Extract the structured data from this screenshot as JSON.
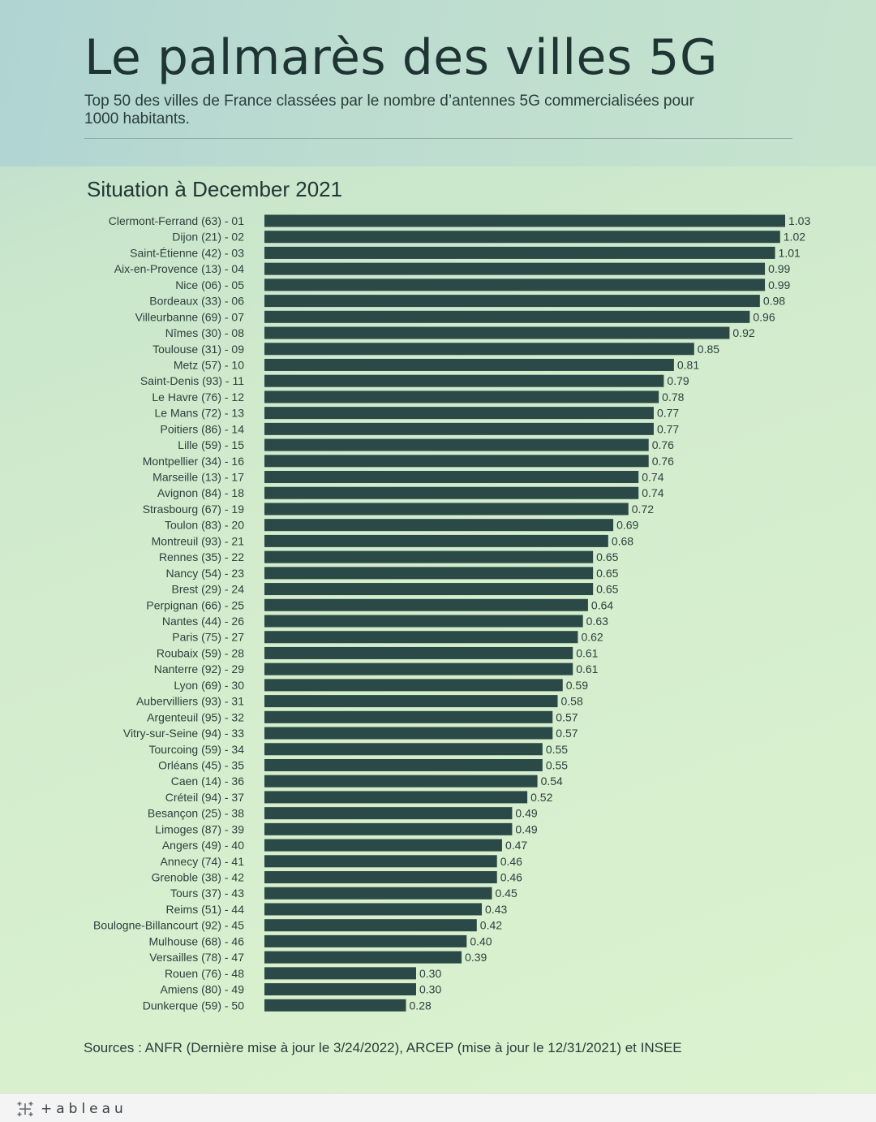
{
  "header": {
    "title": "Le palmarès des villes 5G",
    "subtitle": "Top 50 des villes de France classées par le nombre d’antennes 5G commercialisées pour 1000 habitants."
  },
  "chart_heading": "Situation à December 2021",
  "chart_data": {
    "type": "bar",
    "orientation": "horizontal",
    "categories": [
      "Clermont-Ferrand (63)  - 01",
      "Dijon (21)  - 02",
      "Saint-Étienne (42)  - 03",
      "Aix-en-Provence (13)  - 04",
      "Nice (06)  - 05",
      "Bordeaux (33)  - 06",
      "Villeurbanne (69)  - 07",
      "Nîmes (30)  - 08",
      "Toulouse (31)  - 09",
      "Metz (57)  - 10",
      "Saint-Denis (93)  - 11",
      "Le Havre (76)  - 12",
      "Le Mans (72)  - 13",
      "Poitiers (86)  - 14",
      "Lille (59)  - 15",
      "Montpellier (34)  - 16",
      "Marseille (13)  - 17",
      "Avignon (84)  - 18",
      "Strasbourg (67)  - 19",
      "Toulon (83)  - 20",
      "Montreuil (93)  - 21",
      "Rennes (35)  - 22",
      "Nancy (54)  - 23",
      "Brest (29)  - 24",
      "Perpignan (66)  - 25",
      "Nantes (44)  - 26",
      "Paris (75)  - 27",
      "Roubaix (59)  - 28",
      "Nanterre (92)  - 29",
      "Lyon (69)  - 30",
      "Aubervilliers (93)  - 31",
      "Argenteuil (95)  - 32",
      "Vitry-sur-Seine (94)  - 33",
      "Tourcoing (59)  - 34",
      "Orléans (45)  - 35",
      "Caen (14)  - 36",
      "Créteil (94)  - 37",
      "Besançon (25)  - 38",
      "Limoges (87)  - 39",
      "Angers (49)  - 40",
      "Annecy (74)  - 41",
      "Grenoble (38)  - 42",
      "Tours (37)  - 43",
      "Reims (51)  - 44",
      "Boulogne-Billancourt (92)  - 45",
      "Mulhouse (68)  - 46",
      "Versailles (78)  - 47",
      "Rouen (76)  - 48",
      "Amiens (80)  - 49",
      "Dunkerque (59)  - 50"
    ],
    "values": [
      1.03,
      1.02,
      1.01,
      0.99,
      0.99,
      0.98,
      0.96,
      0.92,
      0.85,
      0.81,
      0.79,
      0.78,
      0.77,
      0.77,
      0.76,
      0.76,
      0.74,
      0.74,
      0.72,
      0.69,
      0.68,
      0.65,
      0.65,
      0.65,
      0.64,
      0.63,
      0.62,
      0.61,
      0.61,
      0.59,
      0.58,
      0.57,
      0.57,
      0.55,
      0.55,
      0.54,
      0.52,
      0.49,
      0.49,
      0.47,
      0.46,
      0.46,
      0.45,
      0.43,
      0.42,
      0.4,
      0.39,
      0.3,
      0.3,
      0.28
    ],
    "value_labels": [
      "1.03",
      "1.02",
      "1.01",
      "0.99",
      "0.99",
      "0.98",
      "0.96",
      "0.92",
      "0.85",
      "0.81",
      "0.79",
      "0.78",
      "0.77",
      "0.77",
      "0.76",
      "0.76",
      "0.74",
      "0.74",
      "0.72",
      "0.69",
      "0.68",
      "0.65",
      "0.65",
      "0.65",
      "0.64",
      "0.63",
      "0.62",
      "0.61",
      "0.61",
      "0.59",
      "0.58",
      "0.57",
      "0.57",
      "0.55",
      "0.55",
      "0.54",
      "0.52",
      "0.49",
      "0.49",
      "0.47",
      "0.46",
      "0.46",
      "0.45",
      "0.43",
      "0.42",
      "0.40",
      "0.39",
      "0.30",
      "0.30",
      "0.28"
    ],
    "xlim": [
      0,
      1.03
    ],
    "grid": false,
    "bar_color": "#2b4a47"
  },
  "source": "Sources : ANFR (Dernière mise à jour le 3/24/2022), ARCEP (mise à jour le 12/31/2021) et INSEE",
  "footer": {
    "brand": "+ableau",
    "logo_icon": "tableau-logo-icon"
  }
}
